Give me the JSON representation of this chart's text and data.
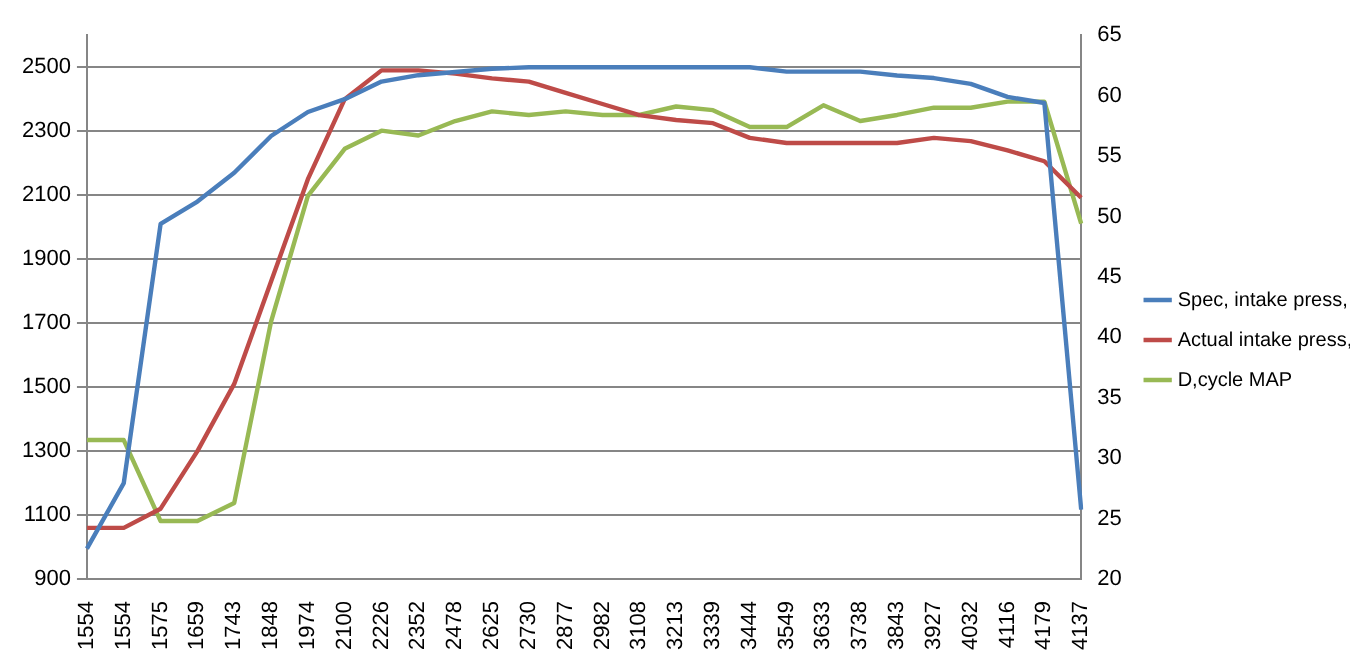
{
  "chart_data": {
    "type": "line",
    "categories": [
      "1554",
      "1554",
      "1575",
      "1659",
      "1743",
      "1848",
      "1974",
      "2100",
      "2226",
      "2352",
      "2478",
      "2625",
      "2730",
      "2877",
      "2982",
      "3108",
      "3213",
      "3339",
      "3444",
      "3549",
      "3633",
      "3738",
      "3843",
      "3927",
      "4032",
      "4116",
      "4179",
      "4137"
    ],
    "series": [
      {
        "name": "Spec, intake press,",
        "color": "#4a7ebb",
        "values": [
          995,
          1200,
          2010,
          2080,
          2170,
          2285,
          2360,
          2400,
          2455,
          2475,
          2485,
          2495,
          2500,
          2500,
          2500,
          2500,
          2500,
          2500,
          2500,
          2486,
          2486,
          2486,
          2474,
          2466,
          2448,
          2407,
          2388,
          1117
        ]
      },
      {
        "name": "Actual intake press,",
        "color": "#be4b48",
        "values": [
          1060,
          1060,
          1120,
          1300,
          1510,
          1830,
          2150,
          2400,
          2490,
          2490,
          2480,
          2465,
          2455,
          2420,
          2385,
          2350,
          2335,
          2325,
          2279,
          2263,
          2263,
          2263,
          2263,
          2279,
          2269,
          2240,
          2206,
          2092
        ]
      },
      {
        "name": "D,cycle MAP",
        "color": "#98b954",
        "axis": "y2",
        "values": [
          31.5,
          31.5,
          24.8,
          24.8,
          26.3,
          41.3,
          51.7,
          55.6,
          57.1,
          56.7,
          57.9,
          58.7,
          58.4,
          58.7,
          58.4,
          58.4,
          59.1,
          58.8,
          57.4,
          57.4,
          59.2,
          57.9,
          58.4,
          59.0,
          59.0,
          59.5,
          59.5,
          49.4
        ]
      }
    ],
    "ylim": [
      900,
      2600
    ],
    "yticks": [
      900,
      1100,
      1300,
      1500,
      1700,
      1900,
      2100,
      2300,
      2500
    ],
    "y2lim": [
      20,
      65
    ],
    "y2ticks": [
      20,
      25,
      30,
      35,
      40,
      45,
      50,
      55,
      60,
      65
    ],
    "grid": "y",
    "legend": "right",
    "marker": "none",
    "line_style": "solid"
  }
}
